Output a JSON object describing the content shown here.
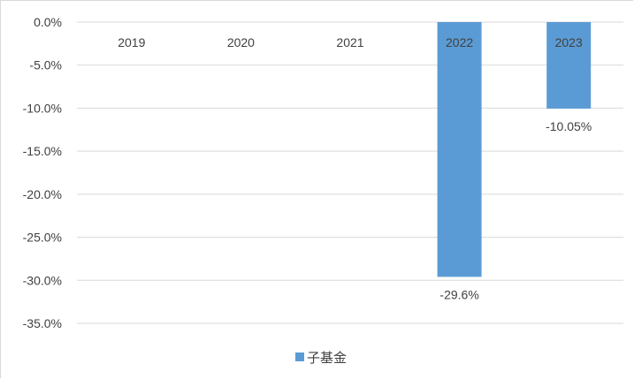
{
  "chart_data": {
    "type": "bar",
    "categories": [
      "2019",
      "2020",
      "2021",
      "2022",
      "2023"
    ],
    "series": [
      {
        "name": "子基金",
        "values": [
          null,
          null,
          null,
          -29.6,
          -10.05
        ],
        "color": "#5b9bd5"
      }
    ],
    "data_labels": [
      "",
      "",
      "",
      "-29.6%",
      "-10.05%"
    ],
    "ylim": [
      -35,
      0
    ],
    "y_ticks": [
      0,
      -5,
      -10,
      -15,
      -20,
      -25,
      -30,
      -35
    ],
    "y_tick_labels": [
      "0.0%",
      "-5.0%",
      "-10.0%",
      "-15.0%",
      "-20.0%",
      "-25.0%",
      "-30.0%",
      "-35.0%"
    ],
    "grid": true,
    "legend": "bottom-center",
    "category_axis_position": "top"
  }
}
